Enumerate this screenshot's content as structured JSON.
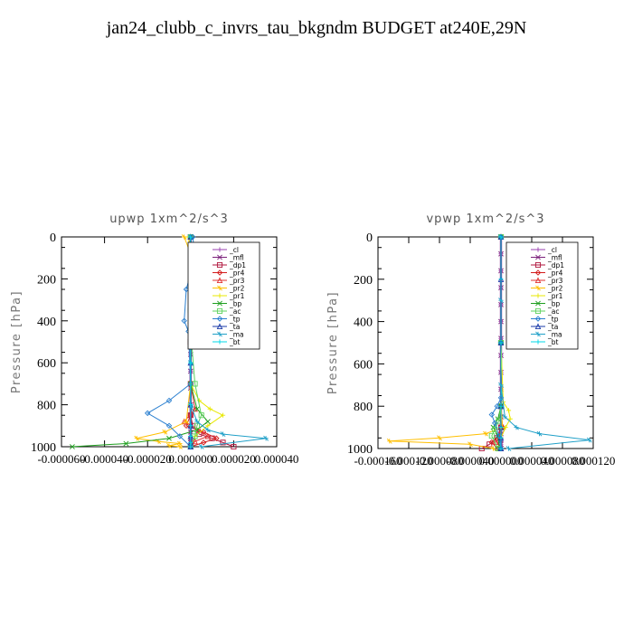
{
  "page_title": "jan24_clubb_c_invrs_tau_bkgndm  BUDGET at240E,29N",
  "legend_entries": [
    "_cl",
    "_mfl",
    "_dp1",
    "_pr4",
    "_pr3",
    "_pr2",
    "_pr1",
    "_bp",
    "_ac",
    "_tp",
    "_ta",
    "_ma",
    "_bt"
  ],
  "colors": {
    "_cl": "#9a3fb0",
    "_mfl": "#7a1f7a",
    "_dp1": "#b0153c",
    "_pr4": "#d41c1c",
    "_pr3": "#e03030",
    "_pr2": "#ffbf00",
    "_pr1": "#e8e800",
    "_bp": "#1e9e1e",
    "_ac": "#5fd35f",
    "_tp": "#2a7fd0",
    "_ta": "#1a3aa8",
    "_ma": "#20a0c8",
    "_bt": "#00d8e8"
  },
  "chart_data": [
    {
      "type": "line",
      "title": "upwp   1xm^2/s^3",
      "ylabel": "Pressure [hPa]",
      "ylim": [
        1000,
        0
      ],
      "xlim": [
        -6e-05,
        4e-05
      ],
      "yticks": [
        0,
        200,
        400,
        600,
        800,
        1000
      ],
      "xtick_labels": [
        "-0.000060",
        "-0.000040",
        "-0.000020",
        "0.000000",
        "0.000020",
        "0.000040"
      ],
      "grid": false,
      "legend_position": "top-right",
      "series": [
        {
          "name": "_cl",
          "x": [
            0,
            0,
            0,
            0,
            0,
            0,
            0,
            0,
            0,
            0,
            0,
            0,
            0,
            0,
            0,
            0,
            0
          ],
          "y": [
            0,
            80,
            160,
            240,
            320,
            400,
            480,
            560,
            640,
            720,
            800,
            850,
            900,
            930,
            960,
            980,
            1000
          ]
        },
        {
          "name": "_mfl",
          "x": [
            0,
            0,
            0,
            0,
            0,
            0,
            0,
            0,
            0,
            0,
            0,
            0,
            0,
            0,
            0,
            0,
            0
          ],
          "y": [
            0,
            80,
            160,
            240,
            320,
            400,
            480,
            560,
            640,
            720,
            800,
            850,
            900,
            930,
            960,
            980,
            1000
          ]
        },
        {
          "name": "_dp1",
          "x": [
            0,
            0,
            0,
            0,
            1e-06,
            4e-06,
            1e-05,
            1.5e-05,
            2e-05
          ],
          "y": [
            0,
            500,
            700,
            850,
            900,
            940,
            960,
            980,
            1000
          ]
        },
        {
          "name": "_pr4",
          "x": [
            0,
            0,
            0,
            0,
            -2e-06,
            6e-06,
            1.2e-05,
            6e-06,
            0
          ],
          "y": [
            0,
            500,
            700,
            850,
            900,
            930,
            960,
            980,
            1000
          ]
        },
        {
          "name": "_pr3",
          "x": [
            0,
            0,
            0,
            2e-06,
            -3e-06,
            4e-06,
            8e-06,
            2e-06,
            0
          ],
          "y": [
            0,
            500,
            700,
            820,
            880,
            920,
            950,
            975,
            1000
          ]
        },
        {
          "name": "_pr2",
          "x": [
            -3e-06,
            0,
            0,
            0,
            0,
            -2e-06,
            -1.2e-05,
            -2.5e-05,
            -1.5e-05,
            -5e-06,
            -1e-05,
            -5e-06
          ],
          "y": [
            0,
            80,
            100,
            500,
            700,
            880,
            930,
            960,
            975,
            985,
            995,
            1000
          ]
        },
        {
          "name": "_pr1",
          "x": [
            -1e-06,
            0,
            0,
            0,
            4e-06,
            9e-06,
            1.5e-05,
            8e-06,
            2e-06,
            0
          ],
          "y": [
            0,
            100,
            500,
            700,
            780,
            820,
            850,
            900,
            950,
            1000
          ]
        },
        {
          "name": "_bp",
          "x": [
            0,
            0,
            0,
            0,
            3e-06,
            8e-06,
            3e-06,
            -1e-05,
            -3e-05,
            -5.5e-05
          ],
          "y": [
            0,
            300,
            500,
            700,
            820,
            880,
            920,
            960,
            985,
            1000
          ]
        },
        {
          "name": "_ac",
          "x": [
            0,
            0,
            0,
            2e-06,
            5e-06,
            3e-06,
            2e-06,
            0
          ],
          "y": [
            0,
            350,
            450,
            700,
            850,
            900,
            950,
            1000
          ]
        },
        {
          "name": "_tp",
          "x": [
            1e-06,
            2e-06,
            -2e-06,
            -3e-06,
            -1e-06,
            0,
            -1e-05,
            -2e-05,
            -1e-05,
            -5e-06,
            0
          ],
          "y": [
            0,
            100,
            250,
            400,
            450,
            700,
            780,
            840,
            900,
            950,
            1000
          ]
        },
        {
          "name": "_ta",
          "x": [
            0,
            0,
            0,
            0,
            0,
            0,
            0,
            0,
            0
          ],
          "y": [
            0,
            200,
            400,
            600,
            800,
            900,
            950,
            980,
            1000
          ]
        },
        {
          "name": "_ma",
          "x": [
            0,
            0,
            0,
            0,
            3e-06,
            8e-06,
            1.5e-05,
            3.5e-05,
            5e-06
          ],
          "y": [
            0,
            300,
            600,
            800,
            880,
            920,
            940,
            960,
            1000
          ]
        },
        {
          "name": "_bt",
          "x": [
            0,
            0,
            0,
            0,
            0,
            0,
            0,
            0,
            0
          ],
          "y": [
            0,
            200,
            400,
            600,
            800,
            900,
            950,
            980,
            1000
          ]
        }
      ]
    },
    {
      "type": "line",
      "title": "vpwp   1xm^2/s^3",
      "ylabel": "Pressure [hPa]",
      "ylim": [
        1000,
        0
      ],
      "xlim": [
        -0.00016,
        0.00012
      ],
      "yticks": [
        0,
        200,
        400,
        600,
        800,
        1000
      ],
      "xtick_labels": [
        "-0.000160",
        "-0.000120",
        "-0.000080",
        "-0.000040",
        "0.000000",
        "0.000040",
        "0.000080",
        "0.000120"
      ],
      "grid": false,
      "legend_position": "top-right",
      "series": [
        {
          "name": "_cl",
          "x": [
            0,
            0,
            0,
            0,
            0,
            0,
            0,
            0,
            0,
            0,
            0,
            0,
            0,
            0,
            0,
            0,
            0
          ],
          "y": [
            0,
            80,
            160,
            240,
            320,
            400,
            480,
            560,
            640,
            720,
            800,
            850,
            900,
            930,
            960,
            980,
            1000
          ]
        },
        {
          "name": "_mfl",
          "x": [
            0,
            0,
            0,
            0,
            0,
            0,
            0,
            0,
            0,
            0,
            0,
            0,
            0,
            0,
            0,
            0,
            0
          ],
          "y": [
            0,
            80,
            160,
            240,
            320,
            400,
            480,
            560,
            640,
            720,
            800,
            850,
            900,
            930,
            960,
            980,
            1000
          ]
        },
        {
          "name": "_dp1",
          "x": [
            0,
            0,
            0,
            0,
            -5e-06,
            -1.5e-05,
            -2.5e-05
          ],
          "y": [
            0,
            500,
            800,
            900,
            950,
            980,
            1000
          ]
        },
        {
          "name": "_pr4",
          "x": [
            0,
            0,
            0,
            2e-06,
            -3e-06,
            -1.2e-05,
            -5e-06
          ],
          "y": [
            0,
            500,
            800,
            900,
            940,
            970,
            1000
          ]
        },
        {
          "name": "_pr3",
          "x": [
            0,
            0,
            0,
            1e-06,
            -2e-06,
            -6e-06,
            0
          ],
          "y": [
            0,
            500,
            800,
            900,
            940,
            970,
            1000
          ]
        },
        {
          "name": "_pr2",
          "x": [
            0,
            0,
            0,
            2e-06,
            -2e-05,
            -8e-05,
            -0.000145,
            -4e-05,
            -1e-05
          ],
          "y": [
            0,
            500,
            800,
            900,
            930,
            950,
            965,
            980,
            1000
          ]
        },
        {
          "name": "_pr1",
          "x": [
            0,
            0,
            3e-06,
            1e-05,
            1.2e-05,
            6e-06,
            0
          ],
          "y": [
            0,
            500,
            780,
            820,
            860,
            900,
            950
          ]
        },
        {
          "name": "_bp",
          "x": [
            0,
            0,
            0,
            -4e-06,
            -1e-05,
            -4e-06,
            -2e-06
          ],
          "y": [
            0,
            500,
            800,
            860,
            900,
            940,
            1000
          ]
        },
        {
          "name": "_ac",
          "x": [
            0,
            0,
            0,
            -3e-06,
            -8e-06,
            -1.2e-05,
            -4e-06
          ],
          "y": [
            0,
            500,
            800,
            870,
            910,
            940,
            1000
          ]
        },
        {
          "name": "_tp",
          "x": [
            0,
            0,
            0,
            -5e-06,
            -1.2e-05,
            -8e-06,
            -3e-06,
            0
          ],
          "y": [
            0,
            500,
            760,
            800,
            840,
            880,
            940,
            1000
          ]
        },
        {
          "name": "_ta",
          "x": [
            0,
            0,
            0,
            0,
            0,
            0,
            0
          ],
          "y": [
            0,
            200,
            500,
            800,
            900,
            950,
            1000
          ]
        },
        {
          "name": "_ma",
          "x": [
            0,
            0,
            0,
            5e-06,
            2e-05,
            5e-05,
            0.000115,
            1e-05
          ],
          "y": [
            0,
            300,
            700,
            850,
            900,
            930,
            960,
            1000
          ]
        },
        {
          "name": "_bt",
          "x": [
            0,
            0,
            0,
            0,
            0,
            0,
            0
          ],
          "y": [
            0,
            200,
            500,
            800,
            900,
            950,
            1000
          ]
        }
      ]
    }
  ]
}
